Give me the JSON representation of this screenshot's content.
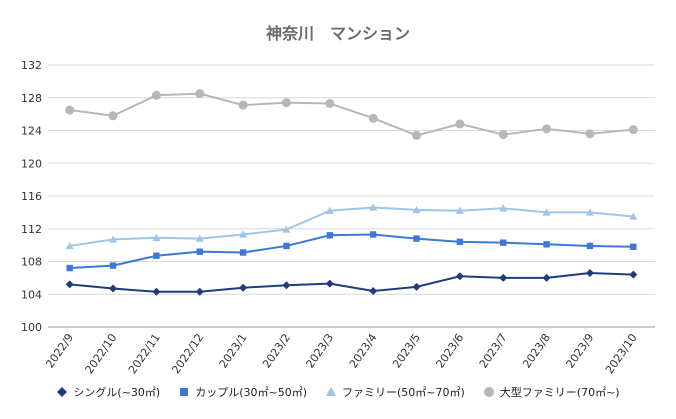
{
  "chart_data": {
    "type": "line",
    "title": "神奈川　マンション",
    "xlabel": "",
    "ylabel": "",
    "categories": [
      "2022/9",
      "2022/10",
      "2022/11",
      "2022/12",
      "2023/1",
      "2023/2",
      "2023/3",
      "2023/4",
      "2023/5",
      "2023/6",
      "2023/7",
      "2023/8",
      "2023/9",
      "2023/10"
    ],
    "ylim": [
      100,
      132
    ],
    "yticks": [
      100,
      104,
      108,
      112,
      116,
      120,
      124,
      128,
      132
    ],
    "grid": true,
    "legend_position": "bottom",
    "series": [
      {
        "name": "シングル(~30㎡)",
        "color": "#1f3d7a",
        "marker": "diamond",
        "values": [
          105.2,
          104.7,
          104.3,
          104.3,
          104.8,
          105.1,
          105.3,
          104.4,
          104.9,
          106.2,
          106.0,
          106.0,
          106.6,
          106.4
        ]
      },
      {
        "name": "カップル(30㎡~50㎡)",
        "color": "#3b78d8",
        "marker": "square",
        "values": [
          107.2,
          107.5,
          108.7,
          109.2,
          109.1,
          109.9,
          111.2,
          111.3,
          110.8,
          110.4,
          110.3,
          110.1,
          109.9,
          109.8
        ]
      },
      {
        "name": "ファミリー(50㎡~70㎡)",
        "color": "#9fc5e8",
        "marker": "triangle",
        "values": [
          109.9,
          110.7,
          110.9,
          110.8,
          111.3,
          111.9,
          114.2,
          114.6,
          114.3,
          114.2,
          114.5,
          114.0,
          114.0,
          113.5
        ]
      },
      {
        "name": "大型ファミリー(70㎡~)",
        "color": "#b7b7b7",
        "marker": "circle",
        "values": [
          126.5,
          125.8,
          128.3,
          128.5,
          127.1,
          127.4,
          127.3,
          125.5,
          123.4,
          124.8,
          123.5,
          124.2,
          123.6,
          124.1
        ]
      }
    ]
  }
}
